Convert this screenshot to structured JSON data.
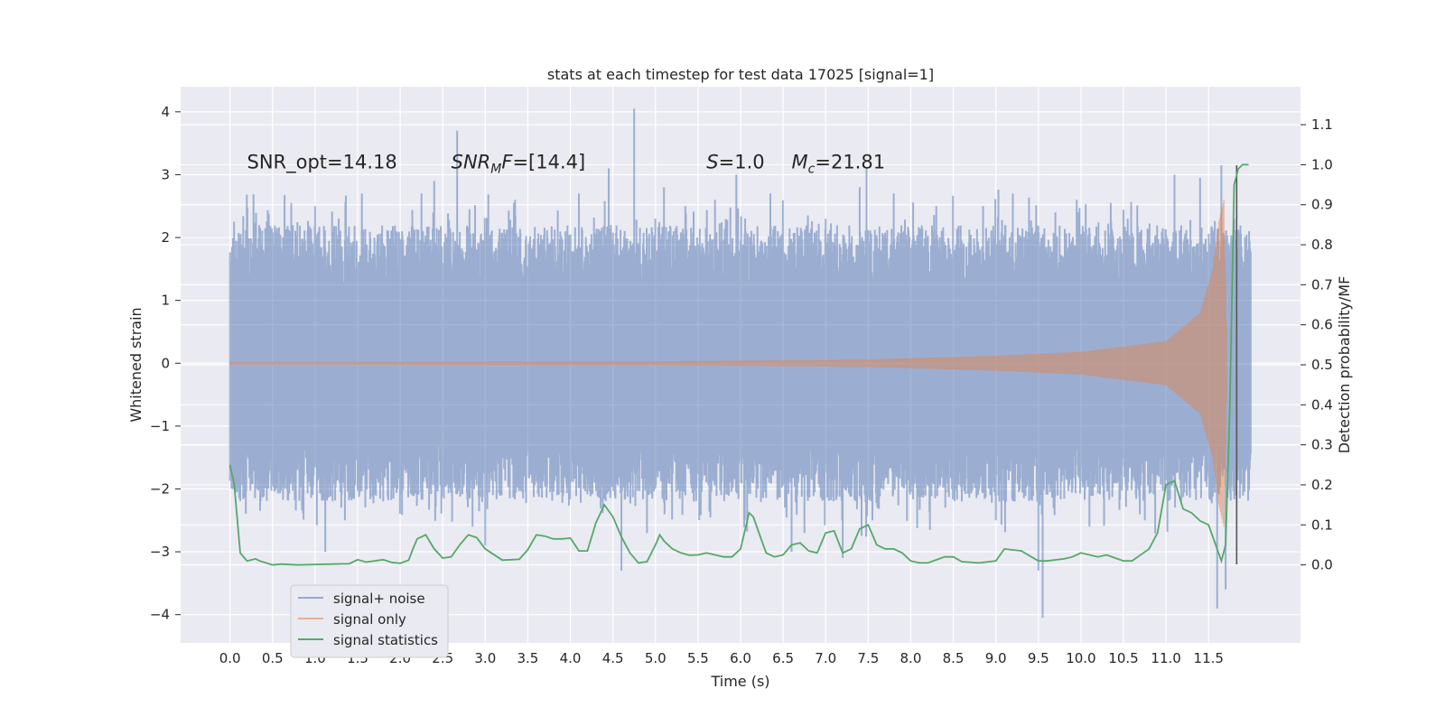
{
  "chart_data": {
    "type": "line",
    "title": "stats at each timestep for test data 17025 [signal=1]",
    "xlabel": "Time (s)",
    "ylabel": "Whitened strain",
    "y2label": "Detection probability/MF",
    "xlim": [
      -0.58,
      12.58
    ],
    "ylim": [
      -4.45,
      4.4
    ],
    "y2lim": [
      -0.195,
      1.195
    ],
    "grid": true,
    "legend_position": "lower-left",
    "x_ticks": [
      0.0,
      0.5,
      1.0,
      1.5,
      2.0,
      2.5,
      3.0,
      3.5,
      4.0,
      4.5,
      5.0,
      5.5,
      6.0,
      6.5,
      7.0,
      7.5,
      8.0,
      8.5,
      9.0,
      9.5,
      10.0,
      10.5,
      11.0,
      11.5
    ],
    "x_tick_labels": [
      "0.0",
      "0.5",
      "1.0",
      "1.5",
      "2.0",
      "2.5",
      "3.0",
      "3.5",
      "4.0",
      "4.5",
      "5.0",
      "5.5",
      "6.0",
      "6.5",
      "7.0",
      "7.5",
      "8.0",
      "8.5",
      "9.0",
      "9.5",
      "10.0",
      "10.5",
      "11.0",
      "11.5"
    ],
    "y_ticks": [
      -4,
      -3,
      -2,
      -1,
      0,
      1,
      2,
      3,
      4
    ],
    "y_tick_labels": [
      "−4",
      "−3",
      "−2",
      "−1",
      "0",
      "1",
      "2",
      "3",
      "4"
    ],
    "y2_ticks": [
      0.0,
      0.1,
      0.2,
      0.3,
      0.4,
      0.5,
      0.6,
      0.7,
      0.8,
      0.9,
      1.0,
      1.1
    ],
    "y2_tick_labels": [
      "0.0",
      "0.1",
      "0.2",
      "0.3",
      "0.4",
      "0.5",
      "0.6",
      "0.7",
      "0.8",
      "0.9",
      "1.0",
      "1.1"
    ],
    "annotations": [
      {
        "text": "SNR_opt=14.18",
        "x": 0.2,
        "y": 3.2
      },
      {
        "text": "SNR",
        "sub": "M",
        "tail": "F=[14.4]",
        "italic": true,
        "x": 2.6,
        "y": 3.2
      },
      {
        "text": "S",
        "tail": "=1.0",
        "italic": true,
        "x": 5.6,
        "y": 3.2
      },
      {
        "text": "M",
        "sub": "c",
        "tail": "=21.81",
        "italic": true,
        "x": 6.6,
        "y": 3.2
      }
    ],
    "vertical_line": {
      "x": 11.83,
      "y_range": [
        -3.2,
        3.15
      ],
      "color": "#555555"
    },
    "series": [
      {
        "name": "signal+ noise",
        "color": "#4c72b0",
        "alpha": 0.5,
        "x_range": [
          0.0,
          12.0
        ],
        "typical_range": [
          -1.25,
          1.25
        ],
        "peaks": [
          [
            0.05,
            1.5
          ],
          [
            0.1,
            2.05
          ],
          [
            0.12,
            -1.5
          ],
          [
            0.5,
            -1.8
          ],
          [
            0.72,
            2.55
          ],
          [
            1.0,
            2.5
          ],
          [
            1.12,
            -3.0
          ],
          [
            1.35,
            -2.5
          ],
          [
            1.55,
            2.7
          ],
          [
            1.8,
            -2.2
          ],
          [
            2.12,
            2.0
          ],
          [
            2.25,
            2.7
          ],
          [
            2.4,
            2.9
          ],
          [
            2.5,
            -1.95
          ],
          [
            2.67,
            3.7
          ],
          [
            2.85,
            -2.6
          ],
          [
            3.0,
            -2.9
          ],
          [
            3.35,
            2.6
          ],
          [
            3.9,
            -2.0
          ],
          [
            4.1,
            2.7
          ],
          [
            4.45,
            3.1
          ],
          [
            4.6,
            -3.3
          ],
          [
            4.75,
            4.05
          ],
          [
            4.9,
            -2.7
          ],
          [
            5.1,
            2.8
          ],
          [
            5.35,
            2.5
          ],
          [
            5.45,
            -2.2
          ],
          [
            5.7,
            2.6
          ],
          [
            5.95,
            3.0
          ],
          [
            6.05,
            -2.5
          ],
          [
            6.35,
            2.7
          ],
          [
            6.6,
            -3.0
          ],
          [
            6.75,
            -2.7
          ],
          [
            7.0,
            2.3
          ],
          [
            7.2,
            -3.1
          ],
          [
            7.4,
            2.8
          ],
          [
            7.48,
            3.1
          ],
          [
            7.55,
            -2.5
          ],
          [
            7.8,
            2.7
          ],
          [
            8.0,
            -2.0
          ],
          [
            8.3,
            2.5
          ],
          [
            8.6,
            -2.2
          ],
          [
            8.85,
            2.5
          ],
          [
            9.0,
            -2.5
          ],
          [
            9.2,
            2.7
          ],
          [
            9.5,
            -3.3
          ],
          [
            9.55,
            -4.05
          ],
          [
            9.7,
            2.4
          ],
          [
            9.95,
            2.6
          ],
          [
            10.1,
            -2.6
          ],
          [
            10.35,
            2.55
          ],
          [
            10.55,
            2.3
          ],
          [
            10.75,
            -2.5
          ],
          [
            11.1,
            3.0
          ],
          [
            11.4,
            2.95
          ],
          [
            11.6,
            -3.9
          ],
          [
            11.65,
            3.15
          ],
          [
            11.7,
            -3.6
          ],
          [
            11.8,
            2.3
          ]
        ]
      },
      {
        "name": "signal only",
        "color": "#dd8452",
        "alpha": 0.5,
        "x_range": [
          0.0,
          11.72
        ],
        "envelope": [
          [
            0.0,
            0.02
          ],
          [
            5.0,
            0.03
          ],
          [
            7.5,
            0.06
          ],
          [
            9.0,
            0.12
          ],
          [
            10.0,
            0.18
          ],
          [
            11.0,
            0.35
          ],
          [
            11.4,
            0.8
          ],
          [
            11.55,
            1.5
          ],
          [
            11.62,
            2.25
          ],
          [
            11.68,
            2.6
          ],
          [
            11.72,
            0.0
          ]
        ]
      },
      {
        "name": "signal statistics",
        "color": "#55a868",
        "alpha": 1.0,
        "axis": "y2",
        "x": [
          0.0,
          0.05,
          0.12,
          0.2,
          0.3,
          0.35,
          0.5,
          0.6,
          0.8,
          1.0,
          1.2,
          1.4,
          1.5,
          1.6,
          1.8,
          1.9,
          2.0,
          2.1,
          2.15,
          2.2,
          2.3,
          2.4,
          2.5,
          2.6,
          2.7,
          2.8,
          2.9,
          3.0,
          3.2,
          3.4,
          3.5,
          3.6,
          3.7,
          3.8,
          3.9,
          4.0,
          4.1,
          4.2,
          4.3,
          4.4,
          4.5,
          4.6,
          4.7,
          4.8,
          4.9,
          5.0,
          5.05,
          5.1,
          5.2,
          5.3,
          5.4,
          5.5,
          5.6,
          5.8,
          5.9,
          6.0,
          6.1,
          6.15,
          6.2,
          6.3,
          6.4,
          6.5,
          6.6,
          6.7,
          6.8,
          6.9,
          7.0,
          7.1,
          7.2,
          7.3,
          7.4,
          7.5,
          7.6,
          7.7,
          7.8,
          7.9,
          8.0,
          8.1,
          8.2,
          8.4,
          8.5,
          8.6,
          8.8,
          9.0,
          9.1,
          9.3,
          9.5,
          9.6,
          9.8,
          9.9,
          10.0,
          10.2,
          10.3,
          10.5,
          10.6,
          10.8,
          10.9,
          11.0,
          11.1,
          11.2,
          11.3,
          11.4,
          11.5,
          11.6,
          11.65,
          11.7,
          11.75,
          11.8,
          11.85,
          11.9,
          11.97
        ],
        "y": [
          0.25,
          0.2,
          0.03,
          0.01,
          0.015,
          0.01,
          0.0,
          0.002,
          0.0,
          0.001,
          0.002,
          0.003,
          0.013,
          0.007,
          0.013,
          0.006,
          0.004,
          0.012,
          0.04,
          0.065,
          0.075,
          0.04,
          0.017,
          0.02,
          0.05,
          0.075,
          0.068,
          0.04,
          0.012,
          0.014,
          0.038,
          0.075,
          0.072,
          0.065,
          0.065,
          0.067,
          0.035,
          0.035,
          0.105,
          0.15,
          0.12,
          0.07,
          0.03,
          0.005,
          0.008,
          0.05,
          0.075,
          0.06,
          0.04,
          0.03,
          0.024,
          0.025,
          0.03,
          0.02,
          0.02,
          0.04,
          0.13,
          0.12,
          0.09,
          0.03,
          0.02,
          0.025,
          0.05,
          0.055,
          0.035,
          0.03,
          0.08,
          0.085,
          0.03,
          0.04,
          0.09,
          0.1,
          0.05,
          0.04,
          0.04,
          0.03,
          0.01,
          0.005,
          0.005,
          0.02,
          0.02,
          0.008,
          0.005,
          0.01,
          0.04,
          0.035,
          0.01,
          0.01,
          0.015,
          0.02,
          0.03,
          0.02,
          0.025,
          0.01,
          0.01,
          0.04,
          0.08,
          0.2,
          0.21,
          0.14,
          0.13,
          0.11,
          0.1,
          0.04,
          0.01,
          0.05,
          0.4,
          0.95,
          0.99,
          1.0,
          1.0
        ]
      }
    ]
  }
}
